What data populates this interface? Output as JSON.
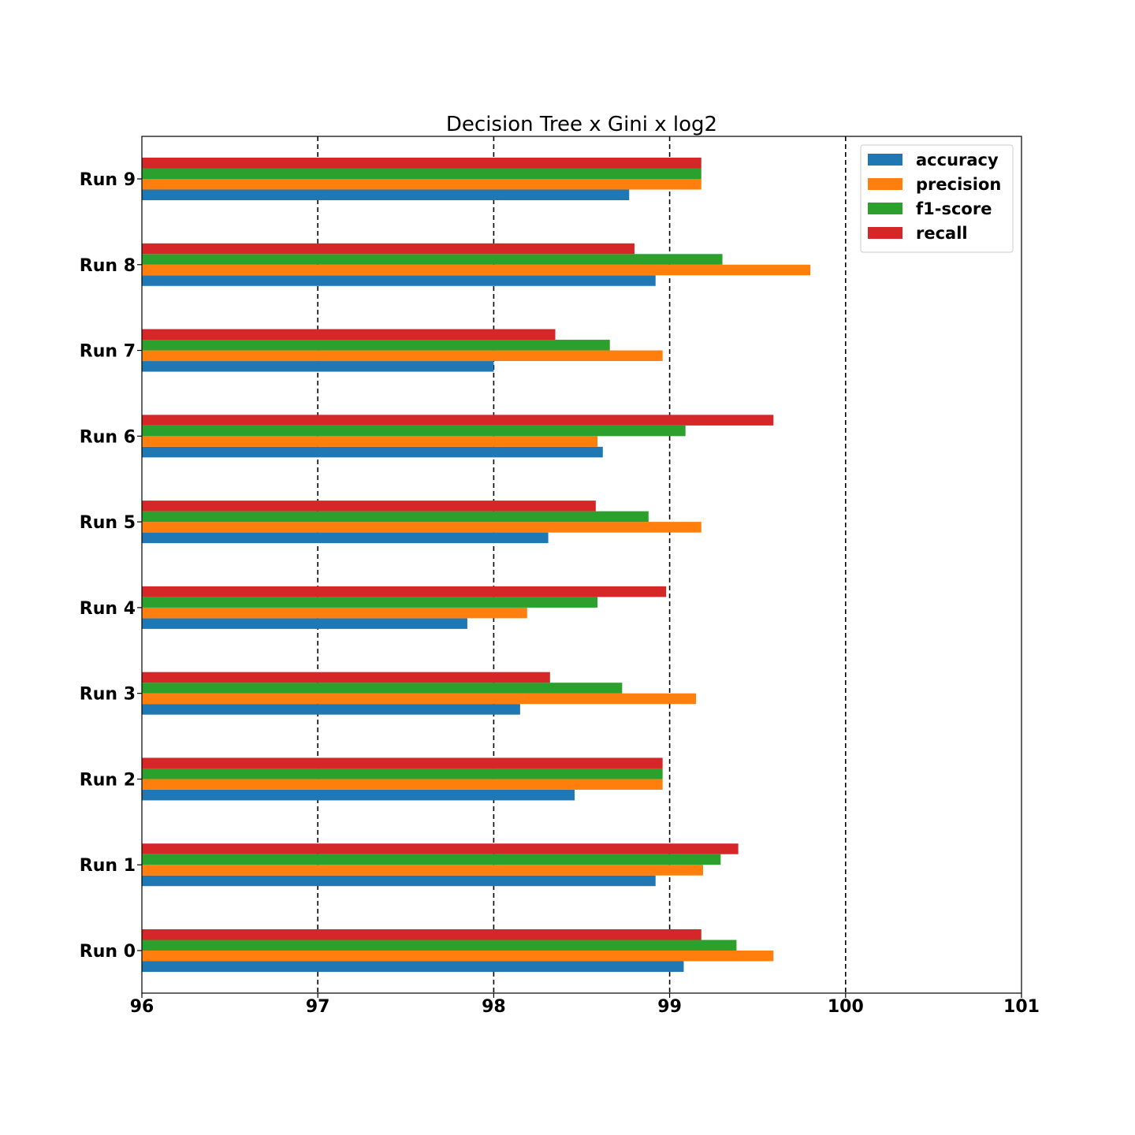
{
  "chart_data": {
    "type": "bar",
    "orientation": "horizontal",
    "title": "Decision Tree x Gini x log2",
    "xlabel": "",
    "ylabel": "",
    "xlim": [
      96,
      101
    ],
    "xticks": [
      "96",
      "97",
      "98",
      "99",
      "100",
      "101"
    ],
    "grid": "x-major-dashed",
    "legend_position": "top-right",
    "categories": [
      "Run 0",
      "Run 1",
      "Run 2",
      "Run 3",
      "Run 4",
      "Run 5",
      "Run 6",
      "Run 7",
      "Run 8",
      "Run 9"
    ],
    "series": [
      {
        "name": "accuracy",
        "color": "#1f77b4",
        "values": [
          99.08,
          98.92,
          98.46,
          98.15,
          97.85,
          98.31,
          98.62,
          98.0,
          98.92,
          98.77
        ]
      },
      {
        "name": "precision",
        "color": "#ff7f0e",
        "values": [
          99.59,
          99.19,
          98.96,
          99.15,
          98.19,
          99.18,
          98.59,
          98.96,
          99.8,
          99.18
        ]
      },
      {
        "name": "f1-score",
        "color": "#2ca02c",
        "values": [
          99.38,
          99.29,
          98.96,
          98.73,
          98.59,
          98.88,
          99.09,
          98.66,
          99.3,
          99.18
        ]
      },
      {
        "name": "recall",
        "color": "#d62728",
        "values": [
          99.18,
          99.39,
          98.96,
          98.32,
          98.98,
          98.58,
          99.59,
          98.35,
          98.8,
          99.18
        ]
      }
    ]
  }
}
